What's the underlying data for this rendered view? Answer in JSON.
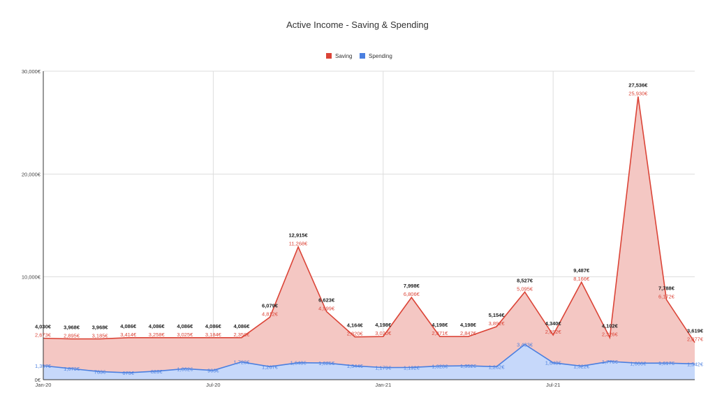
{
  "chart_data": {
    "type": "area",
    "title": "Active Income - Saving & Spending",
    "legend_position": "top",
    "grid": true,
    "ylim": [
      0,
      30000
    ],
    "yticks": [
      "0€",
      "10,000€",
      "20,000€",
      "30,000€"
    ],
    "ytick_values": [
      0,
      10000,
      20000,
      30000
    ],
    "xtick_labels": [
      {
        "index": 0,
        "label": "Jan-20"
      },
      {
        "index": 6,
        "label": "Jul-20"
      },
      {
        "index": 12,
        "label": "Jan-21"
      },
      {
        "index": 18,
        "label": "Jul-21"
      }
    ],
    "colors": {
      "saving": "#db4437",
      "saving_fill": "#f4c7c3",
      "spending": "#4a7fe0",
      "spending_fill": "#c6d8fa",
      "grid": "#dddddd",
      "axis": "#333333"
    },
    "series": [
      {
        "name": "Saving",
        "labels": [
          "2,673€",
          "2,895€",
          "3,185€",
          "3,414€",
          "3,258€",
          "3,025€",
          "3,184€",
          "2,358€",
          "4,812€",
          "11,268€",
          "4,999€",
          "2,820€",
          "3,020€",
          "6,806€",
          "2,871€",
          "2,847€",
          "3,892€",
          "5,095€",
          "2,692€",
          "8,166€",
          "2,326€",
          "25,930€",
          "6,172€",
          "2,077€"
        ]
      },
      {
        "name": "Spending",
        "values": [
          1357,
          1073,
          783,
          673,
          828,
          1062,
          903,
          1728,
          1267,
          1648,
          1625,
          1344,
          1179,
          1192,
          1328,
          1352,
          1262,
          3433,
          1648,
          1322,
          1776,
          1606,
          1617,
          1542
        ],
        "labels": [
          "1,357€",
          "1,073€",
          "783€",
          "673€",
          "828€",
          "1,062€",
          "903€",
          "1,728€",
          "1,267€",
          "1,648€",
          "1,625€",
          "1,344€",
          "1,179€",
          "1,192€",
          "1,328€",
          "1,352€",
          "1,262€",
          "3,433€",
          "1,648€",
          "1,322€",
          "1,776€",
          "1,606€",
          "1,617€",
          "1,542€"
        ]
      }
    ],
    "totals": [
      4030,
      3968,
      3968,
      4086,
      4086,
      4086,
      4086,
      4086,
      6079,
      12915,
      6623,
      4164,
      4198,
      7998,
      4198,
      4198,
      5154,
      8527,
      4340,
      9487,
      4102,
      27536,
      7788,
      3619
    ],
    "total_labels": [
      "4,030€",
      "3,968€",
      "3,968€",
      "4,086€",
      "4,086€",
      "4,086€",
      "4,086€",
      "4,086€",
      "6,079€",
      "12,915€",
      "6,623€",
      "4,164€",
      "4,198€",
      "7,998€",
      "4,198€",
      "4,198€",
      "5,154€",
      "8,527€",
      "4,340€",
      "9,487€",
      "4,102€",
      "27,536€",
      "7,788€",
      "3,619€"
    ]
  }
}
